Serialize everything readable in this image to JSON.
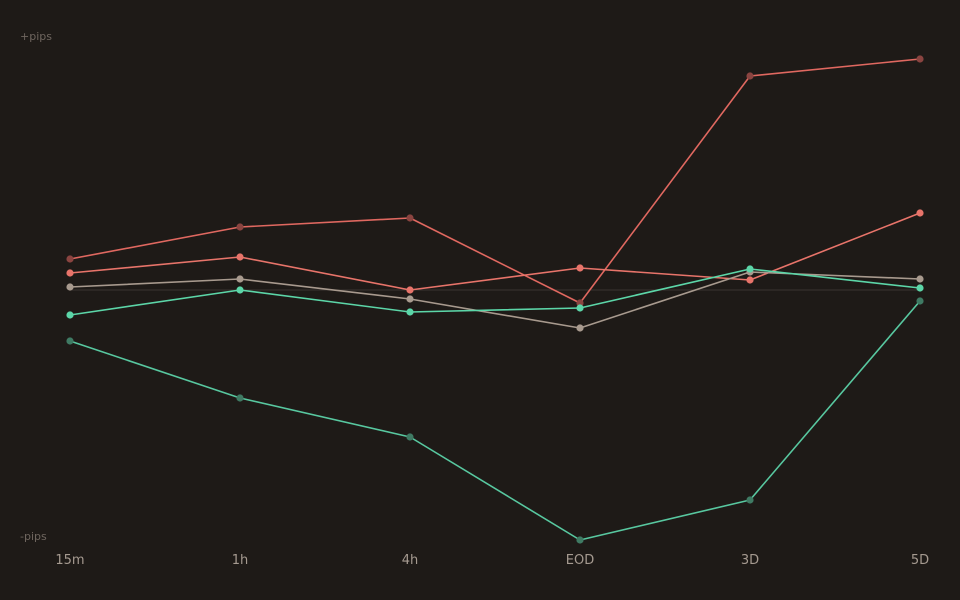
{
  "chart_data": {
    "type": "line",
    "categories": [
      "15m",
      "1h",
      "4h",
      "EOD",
      "3D",
      "5D"
    ],
    "ylim": [
      -100,
      100
    ],
    "y_top_label": "+pips",
    "y_bottom_label": "-pips",
    "zero_line": 0,
    "grid": false,
    "legend": "none",
    "series": [
      {
        "color": "#e06860",
        "marker_color": "#8a4440",
        "values": [
          12.4,
          25.2,
          28.8,
          -5.2,
          85.6,
          92.4
        ]
      },
      {
        "color": "#e8746a",
        "marker_color": "#e8746a",
        "values": [
          6.8,
          13.2,
          0.0,
          8.8,
          4.0,
          30.8
        ]
      },
      {
        "color": "#a89a8e",
        "marker_color": "#a89a8e",
        "values": [
          1.2,
          4.4,
          -3.6,
          -15.2,
          7.2,
          4.4
        ]
      },
      {
        "color": "#5cd6a8",
        "marker_color": "#5cd6a8",
        "values": [
          -10.0,
          0.0,
          -8.8,
          -7.2,
          8.4,
          0.8
        ]
      },
      {
        "color": "#58c8a0",
        "marker_color": "#3f7a63",
        "values": [
          -20.4,
          -43.2,
          -58.8,
          -100.0,
          -84.0,
          -4.4
        ]
      }
    ]
  }
}
